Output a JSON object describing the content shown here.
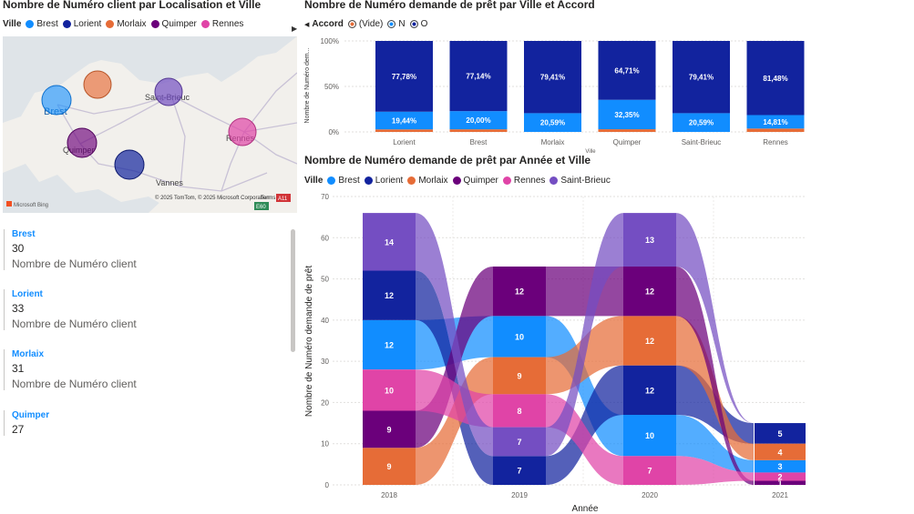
{
  "map_visual": {
    "title": "Nombre de Numéro client par Localisation et Ville",
    "legend_title": "Ville",
    "legend": [
      {
        "name": "Brest",
        "color": "#118DFF"
      },
      {
        "name": "Lorient",
        "color": "#12239E"
      },
      {
        "name": "Morlaix",
        "color": "#E66C37"
      },
      {
        "name": "Quimper",
        "color": "#6B007B"
      },
      {
        "name": "Rennes",
        "color": "#E044A7"
      }
    ],
    "place_labels": [
      "Brest",
      "Saint-Brieuc",
      "Quimper",
      "Rennes",
      "Vannes"
    ],
    "attribution": "© 2025 TomTom, © 2025 Microsoft Corporation",
    "terms": "Terms",
    "bing": "Microsoft Bing",
    "road_badges": [
      "A11",
      "E60"
    ]
  },
  "cards": [
    {
      "city": "Brest",
      "value": "30",
      "label": "Nombre de Numéro client"
    },
    {
      "city": "Lorient",
      "value": "33",
      "label": "Nombre de Numéro client"
    },
    {
      "city": "Morlaix",
      "value": "31",
      "label": "Nombre de Numéro client"
    },
    {
      "city": "Quimper",
      "value": "27",
      "label": ""
    }
  ],
  "colors": {
    "brest": "#118DFF",
    "lorient": "#12239E",
    "morlaix": "#E66C37",
    "quimper": "#6B007B",
    "rennes": "#E044A7",
    "saint_brieuc": "#744EC2",
    "vide": "#E66C37"
  },
  "chart_data": [
    {
      "type": "bar",
      "stacked": "100%",
      "title": "Nombre de Numéro demande de prêt par Ville et Accord",
      "legend_title": "Accord",
      "legend": [
        "(Vide)",
        "N",
        "O"
      ],
      "categories": [
        "Lorient",
        "Brest",
        "Morlaix",
        "Quimper",
        "Saint-Brieuc",
        "Rennes"
      ],
      "series": [
        {
          "name": "(Vide)",
          "values": [
            2.78,
            2.86,
            0,
            2.94,
            0,
            3.7
          ]
        },
        {
          "name": "N",
          "values": [
            19.44,
            20.0,
            20.59,
            32.35,
            20.59,
            14.81
          ]
        },
        {
          "name": "O",
          "values": [
            77.78,
            77.14,
            79.41,
            64.71,
            79.41,
            81.48
          ]
        }
      ],
      "data_labels": {
        "N": [
          "19,44%",
          "20,00%",
          "20,59%",
          "32,35%",
          "20,59%",
          "14,81%"
        ],
        "O": [
          "77,78%",
          "77,14%",
          "79,41%",
          "64,71%",
          "79,41%",
          "81,48%"
        ]
      },
      "yticks": [
        "0%",
        "50%",
        "100%"
      ],
      "ylabel": "Nombre de Numéro dem...",
      "xlabel": "Ville",
      "ylim": [
        0,
        100
      ]
    },
    {
      "type": "ribbon",
      "title": "Nombre de Numéro demande de prêt par Année et Ville",
      "legend_title": "Ville",
      "legend": [
        "Brest",
        "Lorient",
        "Morlaix",
        "Quimper",
        "Rennes",
        "Saint-Brieuc"
      ],
      "categories": [
        "2018",
        "2019",
        "2020",
        "2021"
      ],
      "xlabel": "Année",
      "ylabel": "Nombre de Numéro demande de prêt",
      "ylim": [
        0,
        70
      ],
      "yticks": [
        0,
        10,
        20,
        30,
        40,
        50,
        60,
        70
      ],
      "series": [
        {
          "name": "Brest",
          "values": [
            12,
            10,
            10,
            3
          ]
        },
        {
          "name": "Lorient",
          "values": [
            12,
            7,
            12,
            5
          ]
        },
        {
          "name": "Morlaix",
          "values": [
            9,
            9,
            12,
            4
          ]
        },
        {
          "name": "Quimper",
          "values": [
            9,
            12,
            12,
            1
          ]
        },
        {
          "name": "Rennes",
          "values": [
            10,
            8,
            7,
            2
          ]
        },
        {
          "name": "Saint-Brieuc",
          "values": [
            14,
            7,
            13,
            0
          ]
        }
      ],
      "stack_order": [
        [
          "Morlaix",
          "Quimper",
          "Rennes",
          "Brest",
          "Lorient",
          "Saint-Brieuc"
        ],
        [
          "Lorient",
          "Saint-Brieuc",
          "Rennes",
          "Morlaix",
          "Brest",
          "Quimper"
        ],
        [
          "Rennes",
          "Brest",
          "Lorient",
          "Morlaix",
          "Quimper",
          "Saint-Brieuc"
        ],
        [
          "Quimper",
          "Rennes",
          "Brest",
          "Morlaix",
          "Lorient",
          "Saint-Brieuc"
        ]
      ]
    }
  ]
}
